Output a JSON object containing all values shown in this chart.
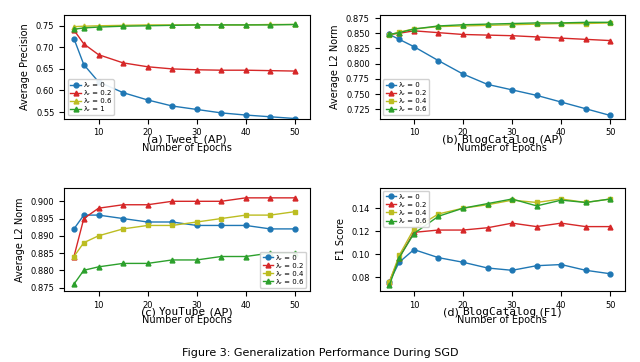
{
  "epochs": [
    5,
    7,
    10,
    15,
    20,
    25,
    30,
    35,
    40,
    45,
    50
  ],
  "tweet_ap": {
    "lambda_0": [
      0.72,
      0.66,
      0.62,
      0.595,
      0.578,
      0.564,
      0.556,
      0.548,
      0.543,
      0.539,
      0.535
    ],
    "lambda_0.2": [
      0.74,
      0.708,
      0.683,
      0.664,
      0.655,
      0.65,
      0.648,
      0.647,
      0.647,
      0.646,
      0.645
    ],
    "lambda_0.6": [
      0.748,
      0.749,
      0.75,
      0.751,
      0.752,
      0.752,
      0.752,
      0.752,
      0.752,
      0.753,
      0.753
    ],
    "lambda_1": [
      0.742,
      0.745,
      0.747,
      0.749,
      0.75,
      0.751,
      0.752,
      0.752,
      0.752,
      0.752,
      0.753
    ],
    "ylabel": "Average Precision",
    "ylim": [
      0.535,
      0.775
    ],
    "yticks": [
      0.55,
      0.6,
      0.65,
      0.7,
      0.75
    ],
    "legend_loc": "lower left",
    "legend_labels": [
      "λᵣ = 0",
      "λᵣ = 0.2",
      "λᵣ = 0.6",
      "λᵣ = 1"
    ],
    "title_prefix": "(a) ",
    "title_mono": "Tweet",
    "title_suffix": " (AP)"
  },
  "blogcatalog_ap": {
    "lambda_0": [
      0.848,
      0.84,
      0.828,
      0.805,
      0.783,
      0.766,
      0.757,
      0.748,
      0.737,
      0.726,
      0.715
    ],
    "lambda_0.2": [
      0.848,
      0.85,
      0.854,
      0.851,
      0.848,
      0.847,
      0.846,
      0.844,
      0.842,
      0.84,
      0.838
    ],
    "lambda_0.4": [
      0.847,
      0.852,
      0.857,
      0.861,
      0.862,
      0.863,
      0.864,
      0.865,
      0.866,
      0.866,
      0.867
    ],
    "lambda_0.6": [
      0.848,
      0.851,
      0.857,
      0.862,
      0.864,
      0.865,
      0.866,
      0.867,
      0.867,
      0.868,
      0.868
    ],
    "ylabel": "Average L2 Norm",
    "ylim": [
      0.71,
      0.88
    ],
    "yticks": [
      0.725,
      0.75,
      0.775,
      0.8,
      0.825,
      0.85,
      0.875
    ],
    "legend_loc": "lower left",
    "legend_labels": [
      "λᵣ = 0",
      "λᵣ = 0.2",
      "λᵣ = 0.4",
      "λᵣ = 0.6"
    ],
    "title_prefix": "(b) ",
    "title_mono": "BlogCatalog",
    "title_suffix": " (AP)"
  },
  "youtube_ap": {
    "lambda_0": [
      0.892,
      0.896,
      0.896,
      0.895,
      0.894,
      0.894,
      0.893,
      0.893,
      0.893,
      0.892,
      0.892
    ],
    "lambda_0.2": [
      0.884,
      0.895,
      0.898,
      0.899,
      0.899,
      0.9,
      0.9,
      0.9,
      0.901,
      0.901,
      0.901
    ],
    "lambda_0.4": [
      0.884,
      0.888,
      0.89,
      0.892,
      0.893,
      0.893,
      0.894,
      0.895,
      0.896,
      0.896,
      0.897
    ],
    "lambda_0.6": [
      0.876,
      0.88,
      0.881,
      0.882,
      0.882,
      0.883,
      0.883,
      0.884,
      0.884,
      0.885,
      0.885
    ],
    "ylabel": "Average L2 Norm",
    "ylim": [
      0.874,
      0.904
    ],
    "yticks": [
      0.875,
      0.88,
      0.885,
      0.89,
      0.895,
      0.9
    ],
    "legend_loc": "lower right",
    "legend_labels": [
      "λᵣ = 0",
      "λᵣ = 0.2",
      "λᵣ = 0.4",
      "λᵣ = 0.6"
    ],
    "title_prefix": "(c) ",
    "title_mono": "YouTube",
    "title_suffix": " (AP)"
  },
  "blogcatalog_f1": {
    "lambda_0": [
      0.076,
      0.093,
      0.104,
      0.097,
      0.093,
      0.088,
      0.086,
      0.09,
      0.091,
      0.086,
      0.083
    ],
    "lambda_0.2": [
      0.076,
      0.097,
      0.119,
      0.121,
      0.121,
      0.123,
      0.127,
      0.124,
      0.127,
      0.124,
      0.124
    ],
    "lambda_0.4": [
      0.076,
      0.099,
      0.122,
      0.135,
      0.14,
      0.143,
      0.147,
      0.145,
      0.148,
      0.145,
      0.148
    ],
    "lambda_0.6": [
      0.073,
      0.097,
      0.118,
      0.133,
      0.14,
      0.144,
      0.148,
      0.142,
      0.147,
      0.145,
      0.148
    ],
    "ylabel": "F1 Score",
    "ylim": [
      0.068,
      0.158
    ],
    "yticks": [
      0.08,
      0.1,
      0.12,
      0.14
    ],
    "legend_loc": "upper left",
    "legend_labels": [
      "λᵣ = 0",
      "λᵣ = 0.2",
      "λᵣ = 0.4",
      "λᵣ = 0.6"
    ],
    "title_prefix": "(d) ",
    "title_mono": "BlogCatalog",
    "title_suffix": " (F1)"
  },
  "colors": {
    "lambda_0": "#1f77b4",
    "lambda_0.2": "#d62728",
    "lambda_0.4": "#bcbd22",
    "lambda_0.6": "#2ca02c",
    "lambda_1": "#2ca02c"
  },
  "xlabel": "Number of Epochs",
  "figure_title": "Figure 3: Generalization Performance During SGD"
}
